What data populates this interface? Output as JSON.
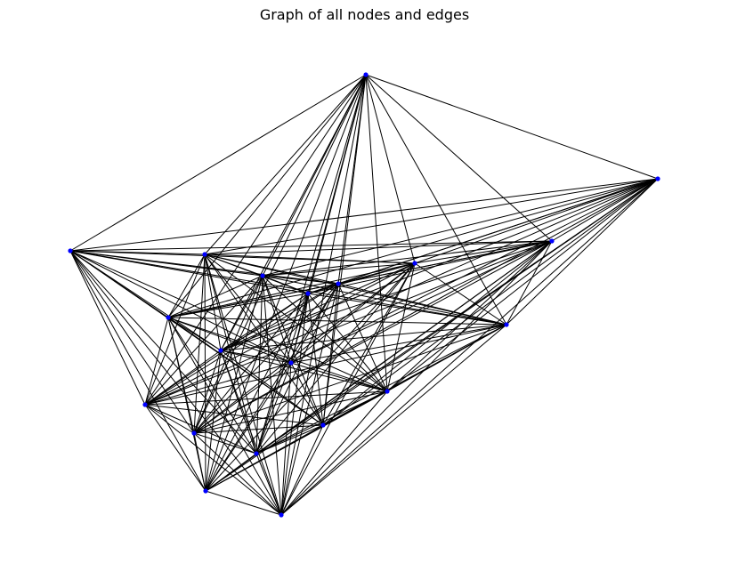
{
  "title": "Graph of all nodes and edges",
  "colors": {
    "node": "#0000ff",
    "edge": "#000000",
    "background": "#ffffff"
  },
  "graph": {
    "node_count": 20,
    "note_edges": "complete graph: every node connected to every other node"
  }
}
